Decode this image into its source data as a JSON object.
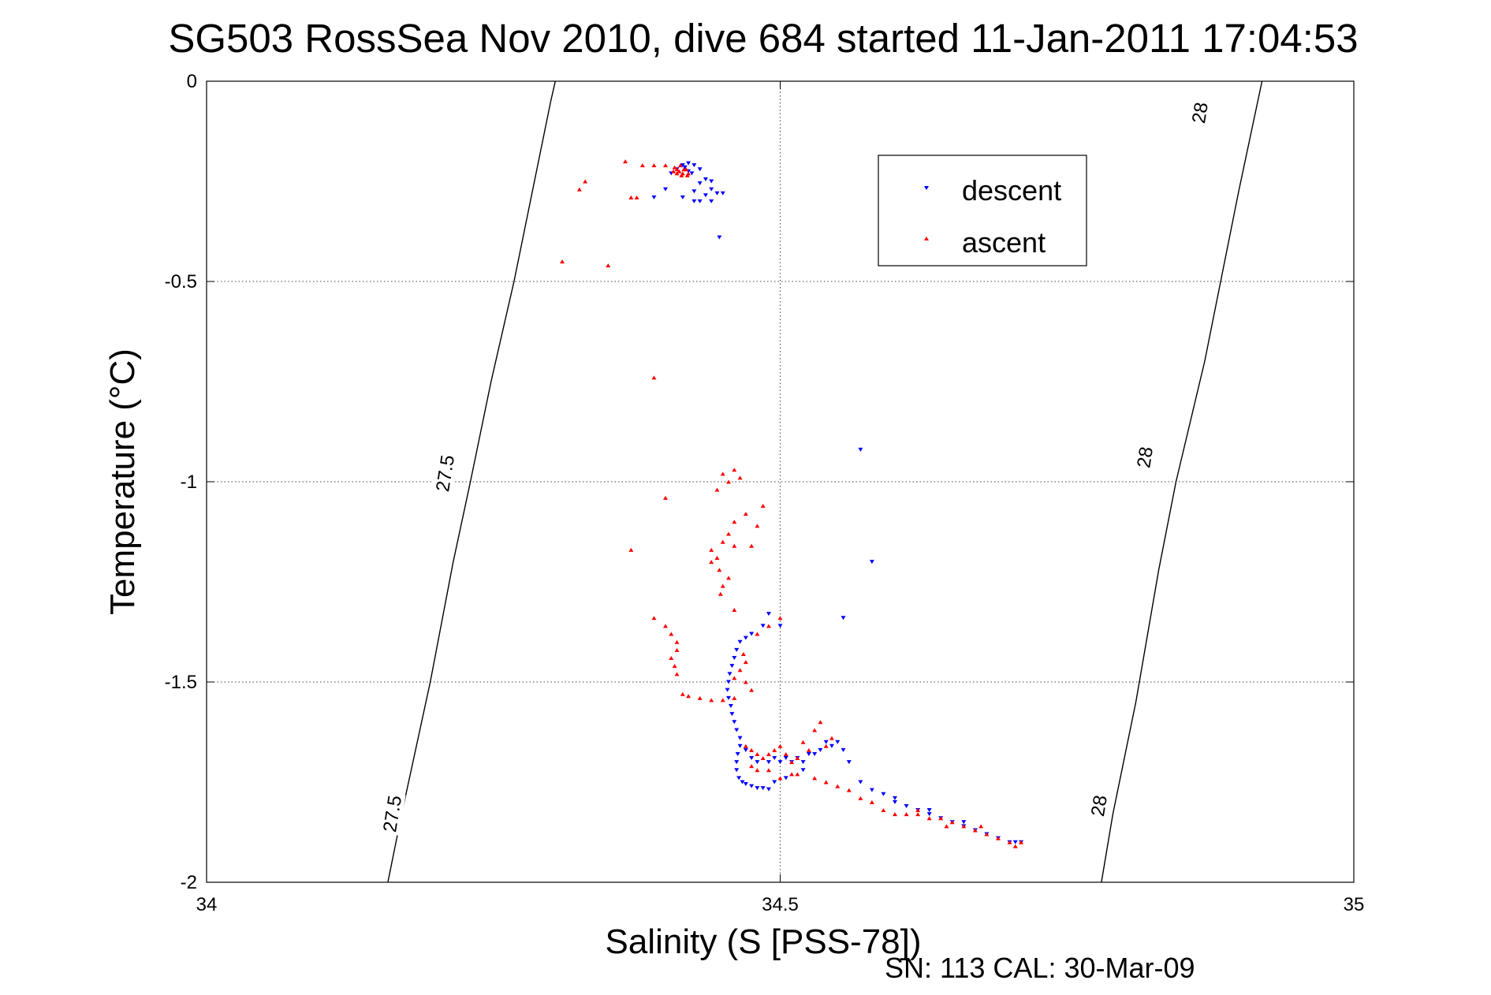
{
  "chart_data": {
    "type": "scatter",
    "title": "SG503 RossSea Nov 2010, dive 684 started 11-Jan-2011 17:04:53",
    "xlabel": "Salinity (S [PSS-78])",
    "ylabel": "Temperature (°C)",
    "footer": "SN: 113  CAL: 30-Mar-09",
    "xlim": [
      34,
      35
    ],
    "ylim": [
      -2,
      0
    ],
    "x_ticks": [
      {
        "value": 34,
        "label": "34"
      },
      {
        "value": 34.5,
        "label": "34.5"
      },
      {
        "value": 35,
        "label": "35"
      }
    ],
    "y_ticks": [
      {
        "value": 0,
        "label": "0"
      },
      {
        "value": -0.5,
        "label": "-0.5"
      },
      {
        "value": -1,
        "label": "-1"
      },
      {
        "value": -1.5,
        "label": "-1.5"
      },
      {
        "value": -2,
        "label": "-2"
      }
    ],
    "grid": "dotted",
    "legend_position": "top-right",
    "legend": [
      {
        "label": "descent",
        "color": "#0000ff",
        "marker": "triangle-down"
      },
      {
        "label": "ascent",
        "color": "#ff0000",
        "marker": "triangle-up"
      }
    ],
    "isopycnals": [
      {
        "label": "27.5",
        "points": [
          [
            34.158,
            -2
          ],
          [
            34.17,
            -1.83
          ],
          [
            34.195,
            -1.5
          ],
          [
            34.215,
            -1.2
          ],
          [
            34.23,
            -1.0
          ],
          [
            34.248,
            -0.75
          ],
          [
            34.268,
            -0.5
          ],
          [
            34.3,
            -0.05
          ],
          [
            34.304,
            0
          ]
        ],
        "labels_at": [
          [
            34.164,
            -1.83
          ],
          [
            34.21,
            -0.98
          ]
        ]
      },
      {
        "label": "28",
        "points": [
          [
            34.78,
            -2
          ],
          [
            34.79,
            -1.83
          ],
          [
            34.81,
            -1.55
          ],
          [
            34.83,
            -1.22
          ],
          [
            34.845,
            -1.0
          ],
          [
            34.87,
            -0.7
          ],
          [
            34.9,
            -0.27
          ],
          [
            34.92,
            0
          ]
        ],
        "labels_at": [
          [
            34.78,
            -1.81
          ],
          [
            34.82,
            -0.94
          ],
          [
            34.868,
            -0.08
          ]
        ]
      }
    ],
    "series": [
      {
        "name": "descent",
        "color": "#0000ff",
        "marker": "triangle-down",
        "points": [
          [
            34.415,
            -0.21
          ],
          [
            34.42,
            -0.205
          ],
          [
            34.425,
            -0.21
          ],
          [
            34.43,
            -0.22
          ],
          [
            34.41,
            -0.22
          ],
          [
            34.405,
            -0.23
          ],
          [
            34.42,
            -0.225
          ],
          [
            34.417,
            -0.215
          ],
          [
            34.423,
            -0.23
          ],
          [
            34.435,
            -0.245
          ],
          [
            34.44,
            -0.25
          ],
          [
            34.43,
            -0.255
          ],
          [
            34.44,
            -0.27
          ],
          [
            34.445,
            -0.28
          ],
          [
            34.4,
            -0.27
          ],
          [
            34.415,
            -0.29
          ],
          [
            34.425,
            -0.3
          ],
          [
            34.43,
            -0.3
          ],
          [
            34.435,
            -0.285
          ],
          [
            34.45,
            -0.28
          ],
          [
            34.44,
            -0.3
          ],
          [
            34.425,
            -0.275
          ],
          [
            34.39,
            -0.29
          ],
          [
            34.447,
            -0.39
          ],
          [
            34.57,
            -0.92
          ],
          [
            34.555,
            -1.34
          ],
          [
            34.49,
            -1.33
          ],
          [
            34.485,
            -1.36
          ],
          [
            34.5,
            -1.36
          ],
          [
            34.58,
            -1.2
          ],
          [
            34.475,
            -1.38
          ],
          [
            34.47,
            -1.39
          ],
          [
            34.465,
            -1.4
          ],
          [
            34.462,
            -1.42
          ],
          [
            34.46,
            -1.44
          ],
          [
            34.458,
            -1.46
          ],
          [
            34.456,
            -1.48
          ],
          [
            34.455,
            -1.5
          ],
          [
            34.454,
            -1.52
          ],
          [
            34.455,
            -1.54
          ],
          [
            34.457,
            -1.56
          ],
          [
            34.458,
            -1.58
          ],
          [
            34.46,
            -1.6
          ],
          [
            34.462,
            -1.62
          ],
          [
            34.465,
            -1.64
          ],
          [
            34.465,
            -1.66
          ],
          [
            34.463,
            -1.68
          ],
          [
            34.462,
            -1.7
          ],
          [
            34.462,
            -1.72
          ],
          [
            34.464,
            -1.74
          ],
          [
            34.467,
            -1.75
          ],
          [
            34.47,
            -1.755
          ],
          [
            34.475,
            -1.76
          ],
          [
            34.48,
            -1.765
          ],
          [
            34.485,
            -1.765
          ],
          [
            34.49,
            -1.768
          ],
          [
            34.48,
            -1.7
          ],
          [
            34.47,
            -1.67
          ],
          [
            34.475,
            -1.69
          ],
          [
            34.49,
            -1.7
          ],
          [
            34.495,
            -1.69
          ],
          [
            34.5,
            -1.7
          ],
          [
            34.505,
            -1.69
          ],
          [
            34.51,
            -1.7
          ],
          [
            34.515,
            -1.69
          ],
          [
            34.52,
            -1.7
          ],
          [
            34.525,
            -1.68
          ],
          [
            34.53,
            -1.68
          ],
          [
            34.535,
            -1.67
          ],
          [
            34.54,
            -1.65
          ],
          [
            34.545,
            -1.66
          ],
          [
            34.55,
            -1.65
          ],
          [
            34.555,
            -1.67
          ],
          [
            34.505,
            -1.74
          ],
          [
            34.495,
            -1.75
          ],
          [
            34.52,
            -1.72
          ],
          [
            34.56,
            -1.7
          ],
          [
            34.57,
            -1.75
          ],
          [
            34.58,
            -1.77
          ],
          [
            34.59,
            -1.78
          ],
          [
            34.6,
            -1.8
          ],
          [
            34.61,
            -1.81
          ],
          [
            34.62,
            -1.82
          ],
          [
            34.63,
            -1.83
          ],
          [
            34.64,
            -1.84
          ],
          [
            34.65,
            -1.85
          ],
          [
            34.66,
            -1.86
          ],
          [
            34.67,
            -1.87
          ],
          [
            34.68,
            -1.88
          ],
          [
            34.69,
            -1.89
          ],
          [
            34.7,
            -1.9
          ],
          [
            34.705,
            -1.9
          ],
          [
            34.71,
            -1.9
          ],
          [
            34.66,
            -1.85
          ],
          [
            34.63,
            -1.82
          ],
          [
            34.6,
            -1.79
          ]
        ]
      },
      {
        "name": "ascent",
        "color": "#ff0000",
        "marker": "triangle-up",
        "points": [
          [
            34.41,
            -0.22
          ],
          [
            34.412,
            -0.225
          ],
          [
            34.415,
            -0.23
          ],
          [
            34.418,
            -0.22
          ],
          [
            34.408,
            -0.215
          ],
          [
            34.414,
            -0.235
          ],
          [
            34.42,
            -0.23
          ],
          [
            34.41,
            -0.23
          ],
          [
            34.416,
            -0.22
          ],
          [
            34.413,
            -0.21
          ],
          [
            34.407,
            -0.225
          ],
          [
            34.419,
            -0.235
          ],
          [
            34.38,
            -0.21
          ],
          [
            34.39,
            -0.21
          ],
          [
            34.4,
            -0.21
          ],
          [
            34.365,
            -0.2
          ],
          [
            34.33,
            -0.25
          ],
          [
            34.325,
            -0.27
          ],
          [
            34.37,
            -0.29
          ],
          [
            34.375,
            -0.29
          ],
          [
            34.31,
            -0.45
          ],
          [
            34.35,
            -0.46
          ],
          [
            34.39,
            -0.74
          ],
          [
            34.45,
            -0.98
          ],
          [
            34.46,
            -0.97
          ],
          [
            34.465,
            -0.99
          ],
          [
            34.455,
            -1.0
          ],
          [
            34.445,
            -1.02
          ],
          [
            34.4,
            -1.04
          ],
          [
            34.37,
            -1.17
          ],
          [
            34.47,
            -1.08
          ],
          [
            34.46,
            -1.1
          ],
          [
            34.455,
            -1.13
          ],
          [
            34.45,
            -1.15
          ],
          [
            34.44,
            -1.17
          ],
          [
            34.445,
            -1.19
          ],
          [
            34.44,
            -1.2
          ],
          [
            34.447,
            -1.22
          ],
          [
            34.455,
            -1.24
          ],
          [
            34.45,
            -1.26
          ],
          [
            34.448,
            -1.28
          ],
          [
            34.46,
            -1.16
          ],
          [
            34.475,
            -1.16
          ],
          [
            34.48,
            -1.11
          ],
          [
            34.485,
            -1.06
          ],
          [
            34.39,
            -1.34
          ],
          [
            34.4,
            -1.36
          ],
          [
            34.405,
            -1.38
          ],
          [
            34.41,
            -1.4
          ],
          [
            34.41,
            -1.42
          ],
          [
            34.405,
            -1.44
          ],
          [
            34.408,
            -1.46
          ],
          [
            34.41,
            -1.48
          ],
          [
            34.415,
            -1.53
          ],
          [
            34.42,
            -1.535
          ],
          [
            34.43,
            -1.54
          ],
          [
            34.44,
            -1.545
          ],
          [
            34.45,
            -1.545
          ],
          [
            34.46,
            -1.54
          ],
          [
            34.465,
            -1.47
          ],
          [
            34.46,
            -1.49
          ],
          [
            34.47,
            -1.5
          ],
          [
            34.475,
            -1.52
          ],
          [
            34.468,
            -1.43
          ],
          [
            34.47,
            -1.45
          ],
          [
            34.48,
            -1.38
          ],
          [
            34.49,
            -1.36
          ],
          [
            34.5,
            -1.34
          ],
          [
            34.46,
            -1.32
          ],
          [
            34.47,
            -1.66
          ],
          [
            34.475,
            -1.67
          ],
          [
            34.48,
            -1.68
          ],
          [
            34.485,
            -1.69
          ],
          [
            34.49,
            -1.68
          ],
          [
            34.495,
            -1.67
          ],
          [
            34.5,
            -1.66
          ],
          [
            34.505,
            -1.68
          ],
          [
            34.51,
            -1.7
          ],
          [
            34.515,
            -1.69
          ],
          [
            34.52,
            -1.65
          ],
          [
            34.525,
            -1.67
          ],
          [
            34.53,
            -1.62
          ],
          [
            34.535,
            -1.6
          ],
          [
            34.545,
            -1.64
          ],
          [
            34.54,
            -1.66
          ],
          [
            34.475,
            -1.71
          ],
          [
            34.48,
            -1.72
          ],
          [
            34.49,
            -1.72
          ],
          [
            34.5,
            -1.74
          ],
          [
            34.51,
            -1.73
          ],
          [
            34.515,
            -1.73
          ],
          [
            34.53,
            -1.74
          ],
          [
            34.54,
            -1.75
          ],
          [
            34.55,
            -1.76
          ],
          [
            34.56,
            -1.77
          ],
          [
            34.57,
            -1.79
          ],
          [
            34.58,
            -1.8
          ],
          [
            34.59,
            -1.82
          ],
          [
            34.6,
            -1.83
          ],
          [
            34.61,
            -1.83
          ],
          [
            34.62,
            -1.83
          ],
          [
            34.63,
            -1.84
          ],
          [
            34.64,
            -1.84
          ],
          [
            34.65,
            -1.85
          ],
          [
            34.66,
            -1.86
          ],
          [
            34.67,
            -1.87
          ],
          [
            34.68,
            -1.88
          ],
          [
            34.69,
            -1.89
          ],
          [
            34.7,
            -1.9
          ],
          [
            34.705,
            -1.91
          ],
          [
            34.71,
            -1.9
          ],
          [
            34.62,
            -1.82
          ],
          [
            34.645,
            -1.86
          ],
          [
            34.675,
            -1.86
          ]
        ]
      }
    ]
  }
}
